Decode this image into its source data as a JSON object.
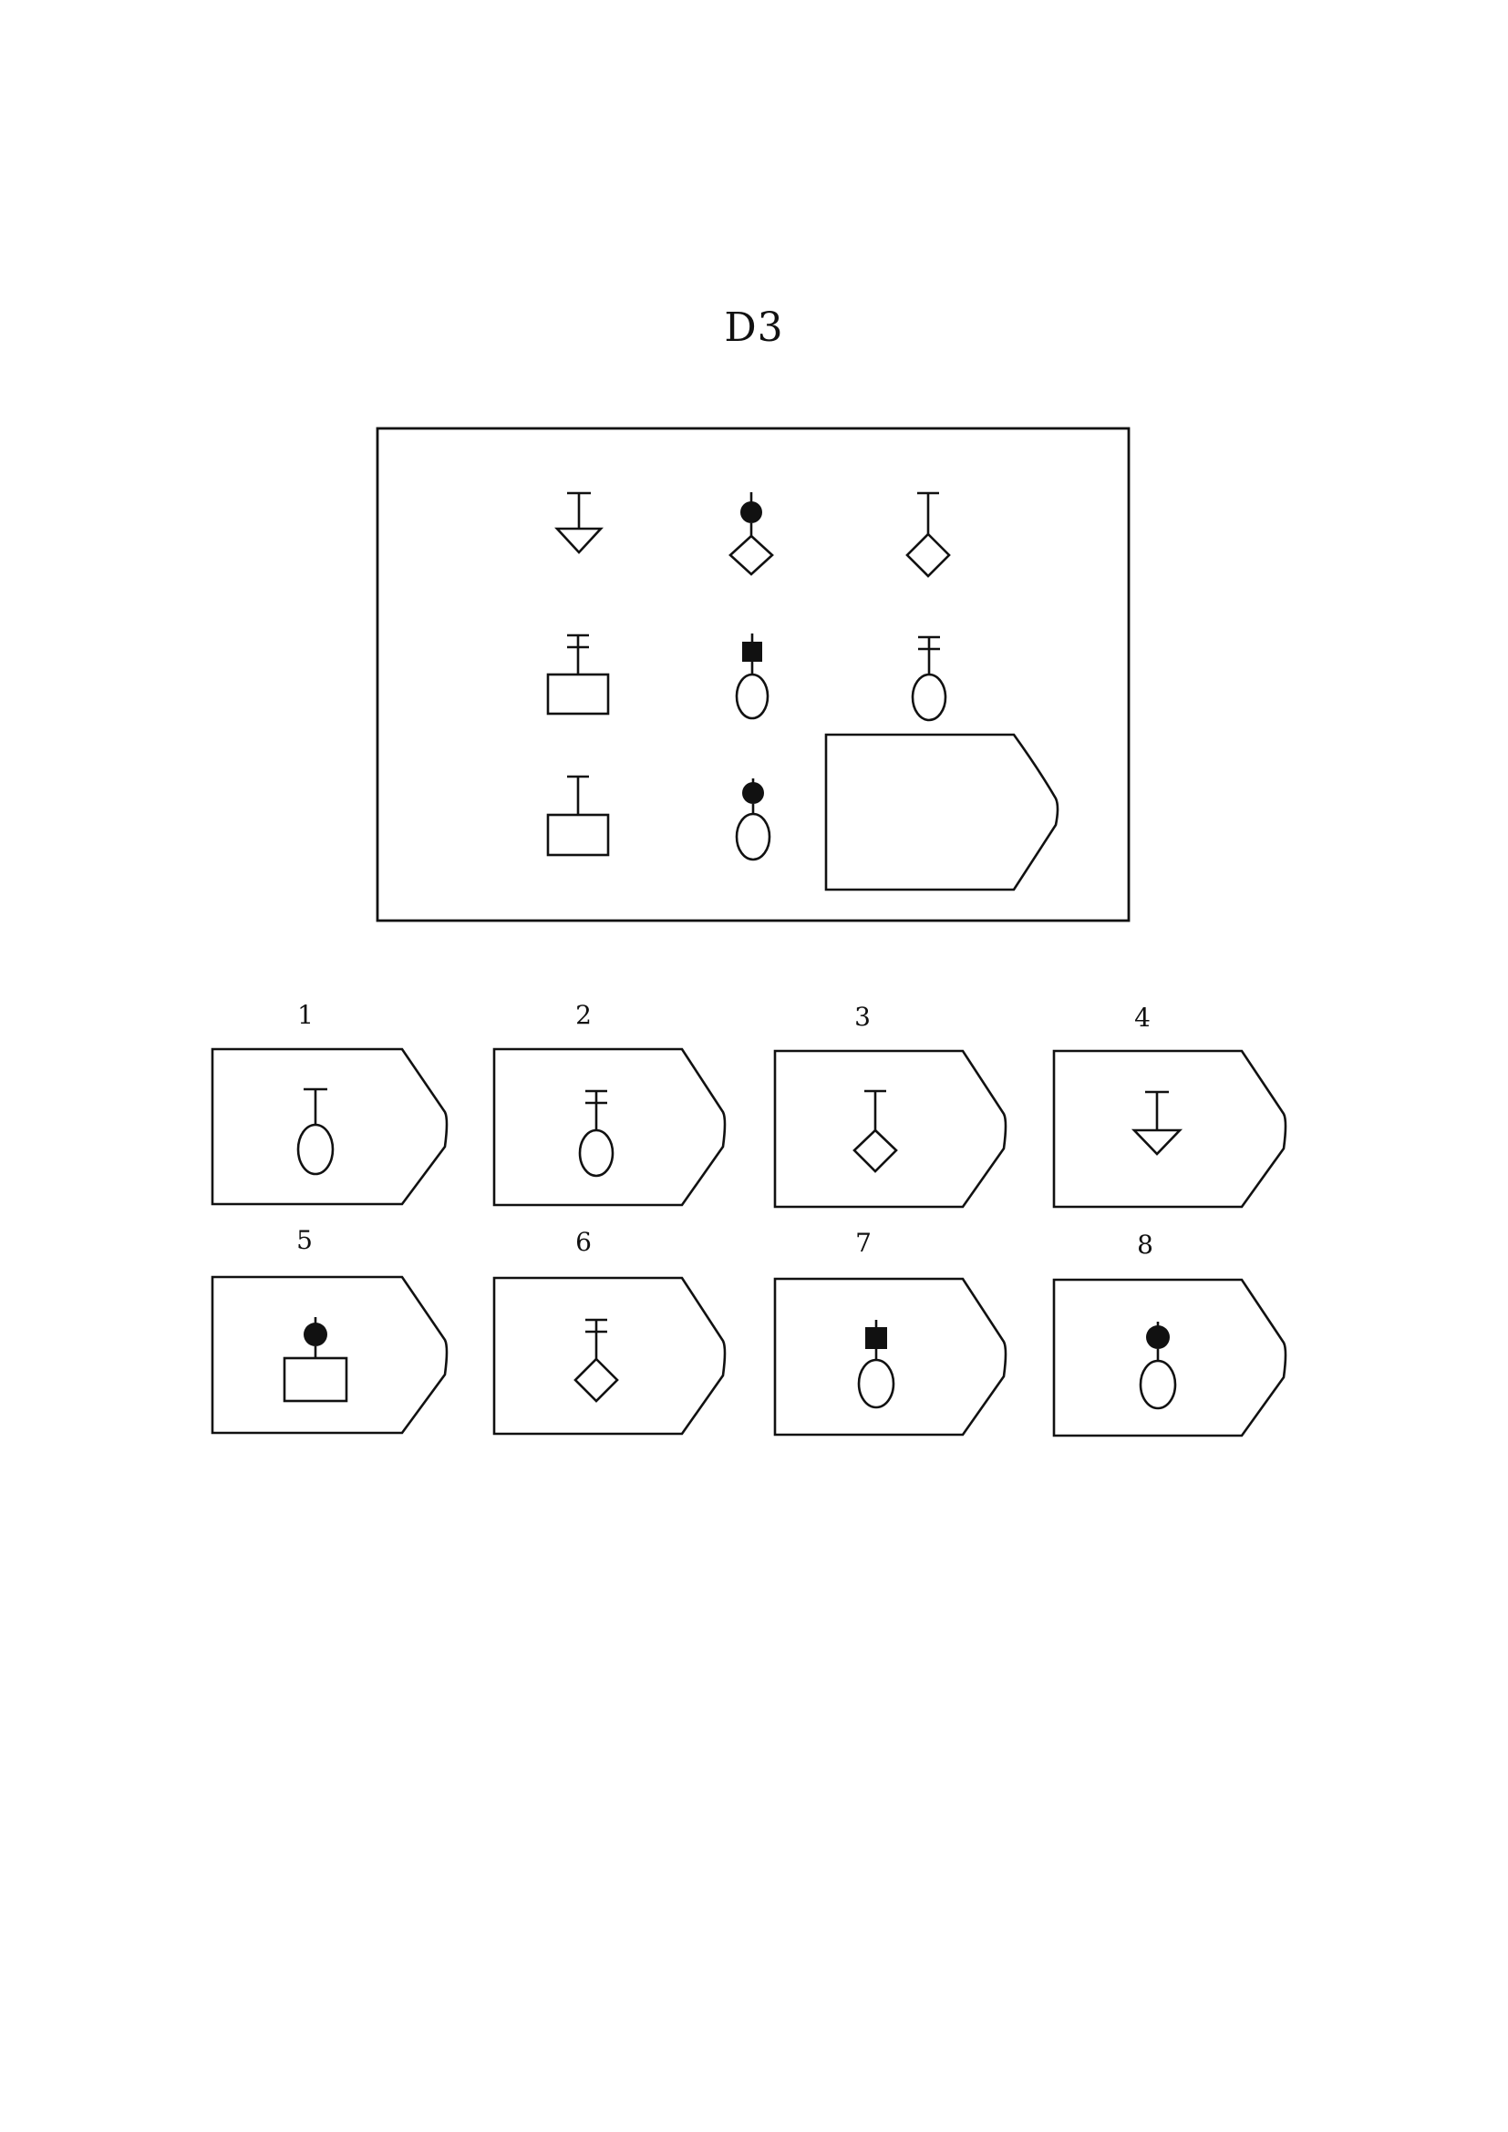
{
  "title": "D3",
  "matrix": {
    "rows": [
      [
        {
          "stem": "single-bar",
          "shape": "triangle-down"
        },
        {
          "stem": "filled-circle",
          "shape": "diamond"
        },
        {
          "stem": "single-bar",
          "shape": "diamond"
        }
      ],
      [
        {
          "stem": "double-bar",
          "shape": "rectangle"
        },
        {
          "stem": "filled-square",
          "shape": "ellipse"
        },
        {
          "stem": "double-bar",
          "shape": "ellipse"
        }
      ],
      [
        {
          "stem": "single-bar",
          "shape": "rectangle"
        },
        {
          "stem": "filled-circle",
          "shape": "ellipse"
        },
        {
          "stem": "missing",
          "shape": "missing"
        }
      ]
    ]
  },
  "options": [
    {
      "number": "1",
      "stem": "single-bar",
      "shape": "ellipse"
    },
    {
      "number": "2",
      "stem": "double-bar",
      "shape": "ellipse"
    },
    {
      "number": "3",
      "stem": "single-bar",
      "shape": "diamond"
    },
    {
      "number": "4",
      "stem": "single-bar",
      "shape": "triangle-down"
    },
    {
      "number": "5",
      "stem": "filled-circle",
      "shape": "rectangle"
    },
    {
      "number": "6",
      "stem": "double-bar",
      "shape": "diamond"
    },
    {
      "number": "7",
      "stem": "filled-square",
      "shape": "ellipse"
    },
    {
      "number": "8",
      "stem": "filled-circle",
      "shape": "ellipse"
    }
  ]
}
